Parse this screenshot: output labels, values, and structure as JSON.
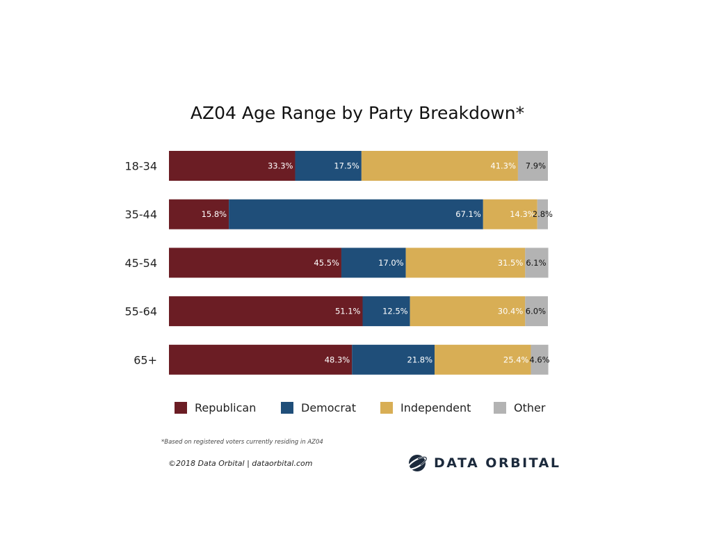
{
  "chart_data": {
    "type": "bar",
    "orientation": "horizontal",
    "stacked": true,
    "title": "AZ04 Age Range by Party Breakdown*",
    "categories": [
      "18-34",
      "35-44",
      "45-54",
      "55-64",
      "65+"
    ],
    "series": [
      {
        "name": "Republican",
        "color": "#6b1d24",
        "label_color": "#ffffff",
        "values": [
          33.3,
          15.8,
          45.5,
          51.1,
          48.3
        ]
      },
      {
        "name": "Democrat",
        "color": "#1f4e79",
        "label_color": "#ffffff",
        "values": [
          17.5,
          67.1,
          17.0,
          12.5,
          21.8
        ]
      },
      {
        "name": "Independent",
        "color": "#d8ae55",
        "label_color": "#ffffff",
        "values": [
          41.3,
          14.3,
          31.5,
          30.4,
          25.4
        ]
      },
      {
        "name": "Other",
        "color": "#b3b3b3",
        "label_color": "#111111",
        "values": [
          7.9,
          2.8,
          6.1,
          6.0,
          4.6
        ]
      }
    ],
    "value_labels": [
      [
        "33.3%",
        "17.5%",
        "41.3%",
        "7.9%"
      ],
      [
        "15.8%",
        "67.1%",
        "14.3%",
        "2.8%"
      ],
      [
        "45.5%",
        "17.0%",
        "31.5%",
        "6.1%"
      ],
      [
        "51.1%",
        "12.5%",
        "30.4%",
        "6.0%"
      ],
      [
        "48.3%",
        "21.8%",
        "25.4%",
        "4.6%"
      ]
    ],
    "xlim": [
      0,
      100
    ],
    "legend_position": "bottom",
    "grid": false,
    "xlabel": "",
    "ylabel": ""
  },
  "footer": {
    "note": "*Based on registered voters currently residing in AZ04",
    "copyright": "©2018 Data Orbital | dataorbital.com",
    "brand": "DATA ORBITAL"
  },
  "colors": {
    "brand": "#1c2a3c"
  }
}
